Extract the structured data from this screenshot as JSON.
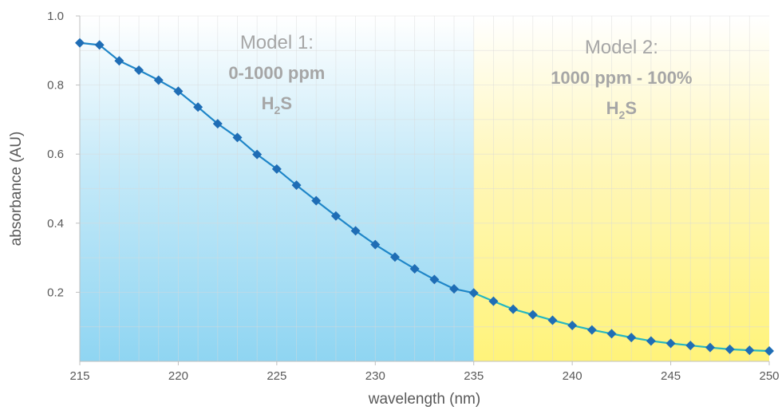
{
  "chart_data": {
    "type": "line",
    "xlabel": "wavelength (nm)",
    "ylabel": "absorbance (AU)",
    "xlim": [
      215,
      250
    ],
    "ylim": [
      0,
      1.0
    ],
    "x_ticks": [
      "215",
      "220",
      "225",
      "230",
      "235",
      "240",
      "245",
      "250"
    ],
    "y_ticks": [
      "0.2",
      "0.4",
      "0.6",
      "0.8",
      "1.0"
    ],
    "grid": true,
    "regions": [
      {
        "x_range": [
          215,
          235
        ],
        "title": "Model 1:",
        "bold_line": "0-1000 ppm",
        "species_main": "H",
        "species_sub": "2",
        "species_tail": "S",
        "color": "#8fd5f2"
      },
      {
        "x_range": [
          235,
          250
        ],
        "title": "Model 2:",
        "bold_line": "1000 ppm - 100%",
        "species_main": "H",
        "species_sub": "2",
        "species_tail": "S",
        "color": "#fff37a"
      }
    ],
    "series": [
      {
        "x": [
          215,
          216,
          217,
          218,
          219,
          220,
          221,
          222,
          223,
          224,
          225,
          226,
          227,
          228,
          229,
          230,
          231,
          232,
          233,
          234,
          235,
          236,
          237,
          238,
          239,
          240,
          241,
          242,
          243,
          244,
          245,
          246,
          247,
          248,
          249,
          250
        ],
        "values": [
          0.922,
          0.916,
          0.87,
          0.843,
          0.814,
          0.782,
          0.736,
          0.688,
          0.648,
          0.599,
          0.557,
          0.51,
          0.465,
          0.421,
          0.378,
          0.338,
          0.302,
          0.268,
          0.237,
          0.21,
          0.198,
          0.174,
          0.151,
          0.135,
          0.119,
          0.104,
          0.091,
          0.08,
          0.069,
          0.059,
          0.052,
          0.046,
          0.04,
          0.035,
          0.032,
          0.03
        ],
        "color_segment_1": "#1f6db5",
        "color_segment_2": "#2e9ad6"
      }
    ],
    "colors": {
      "marker": "#1f6db5",
      "line_model1": "#1f86c8",
      "line_model2": "#26b7c2",
      "grid": "#d9d9d9"
    }
  }
}
